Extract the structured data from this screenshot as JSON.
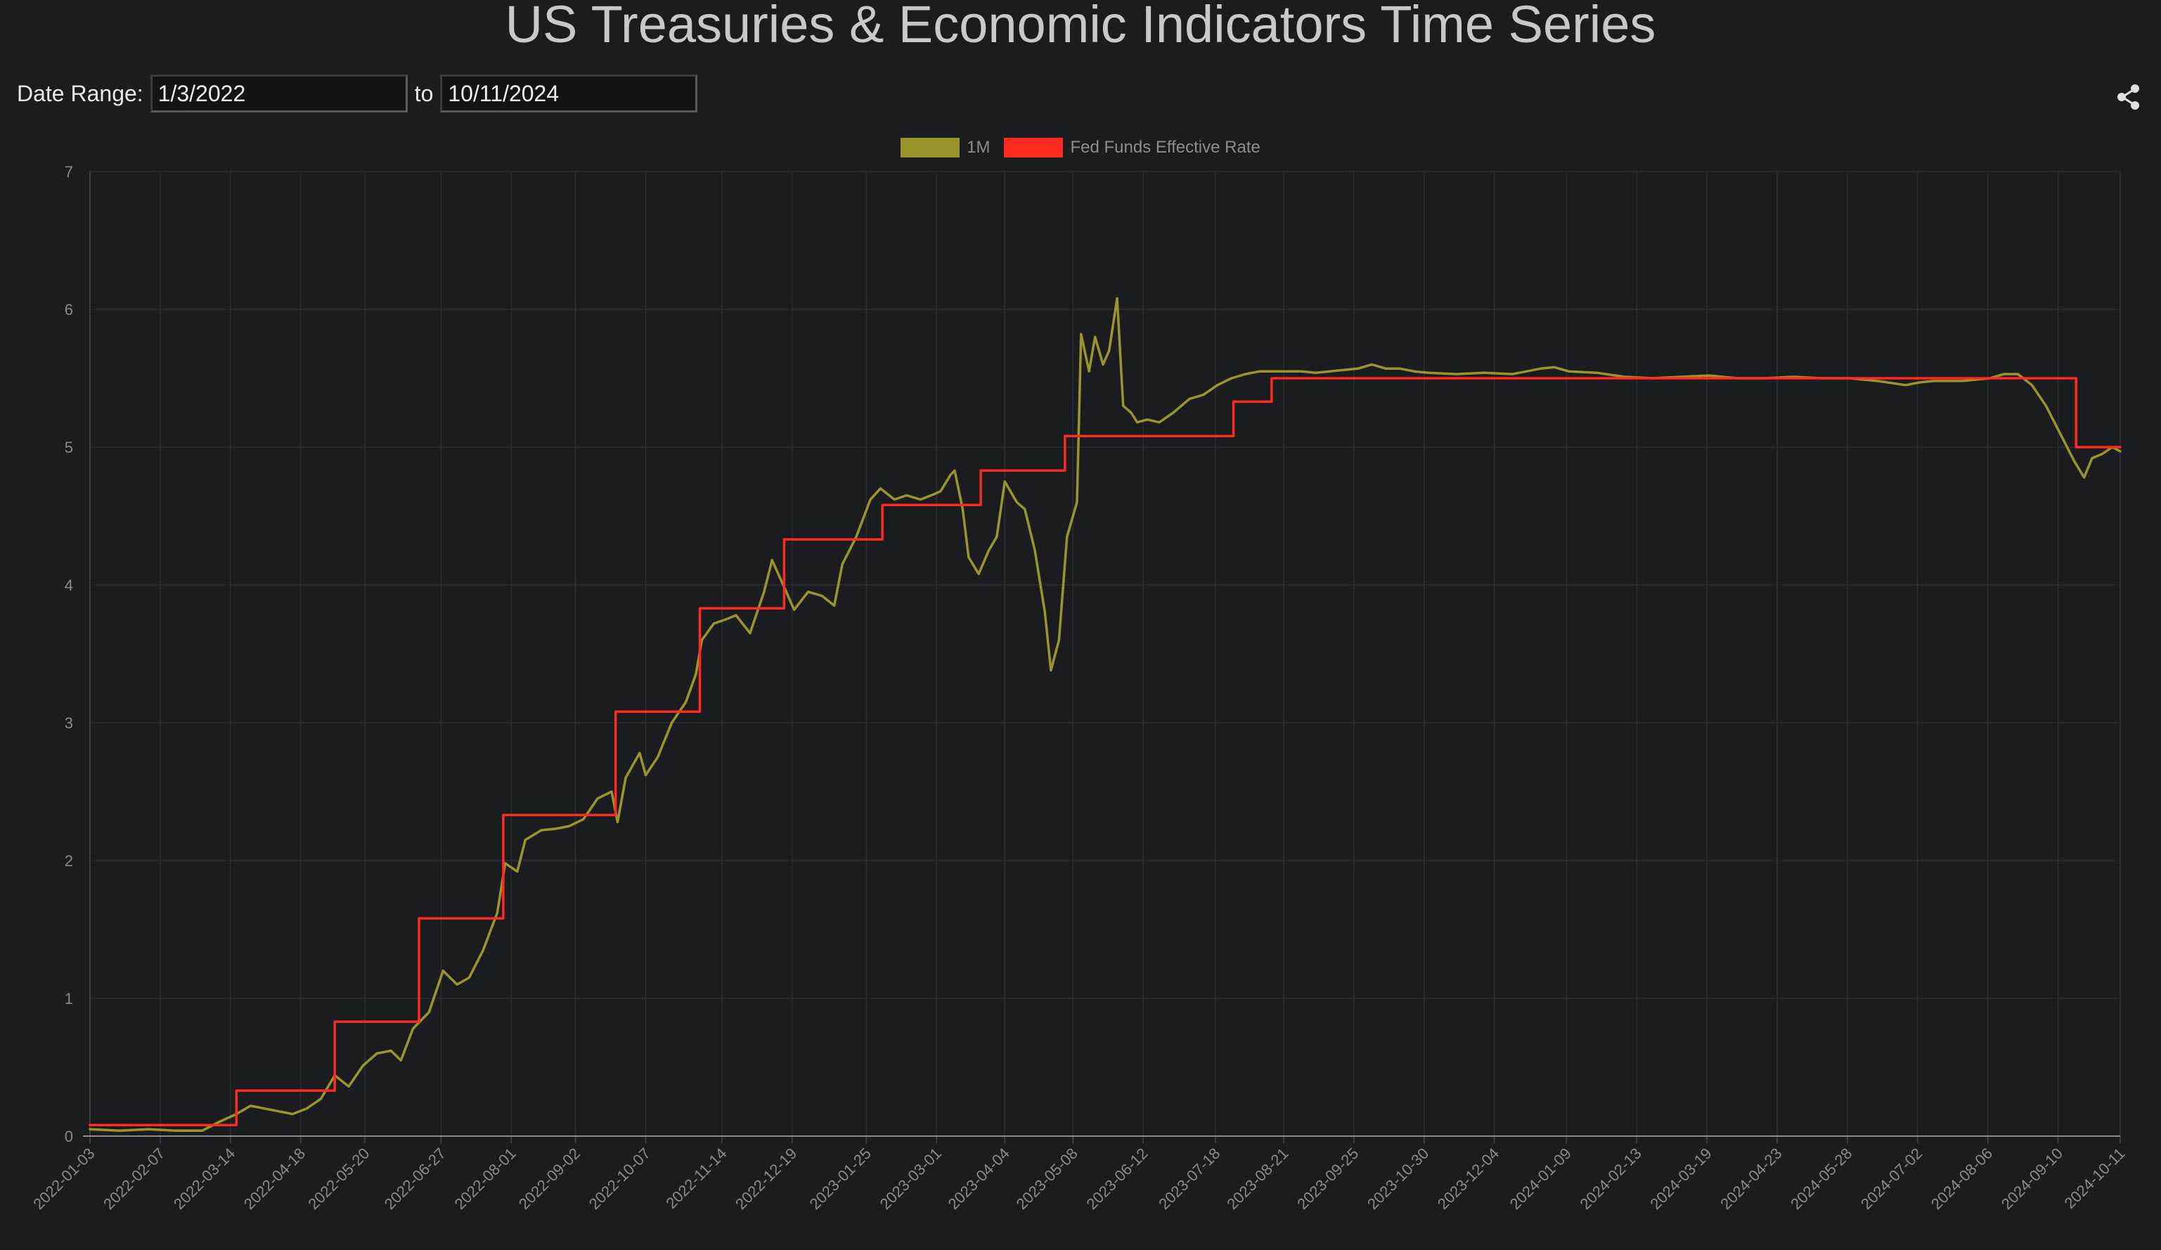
{
  "title": "US Treasuries & Economic Indicators Time Series",
  "controls": {
    "date_range_label": "Date Range:",
    "start_date": "1/3/2022",
    "to_label": "to",
    "end_date": "10/11/2024"
  },
  "share_icon": "share-icon",
  "chart_data": {
    "type": "line",
    "title": "US Treasuries & Economic Indicators Time Series",
    "xlabel": "",
    "ylabel": "",
    "ylim": [
      0,
      7
    ],
    "xlim": [
      "2022-01-03",
      "2024-10-11"
    ],
    "y_ticks": [
      0,
      1,
      2,
      3,
      4,
      5,
      6,
      7
    ],
    "x_tick_labels": [
      "2022-01-03",
      "2022-02-07",
      "2022-03-14",
      "2022-04-18",
      "2022-05-20",
      "2022-06-27",
      "2022-08-01",
      "2022-09-02",
      "2022-10-07",
      "2022-11-14",
      "2022-12-19",
      "2023-01-25",
      "2023-03-01",
      "2023-04-04",
      "2023-05-08",
      "2023-06-12",
      "2023-07-18",
      "2023-08-21",
      "2023-09-25",
      "2023-10-30",
      "2023-12-04",
      "2024-01-09",
      "2024-02-13",
      "2024-03-19",
      "2024-04-23",
      "2024-05-28",
      "2024-07-02",
      "2024-08-06",
      "2024-09-10",
      "2024-10-11"
    ],
    "grid": true,
    "legend_position": "top-center",
    "series": [
      {
        "name": "1M",
        "color": "#9a952a",
        "step": false,
        "points": [
          [
            "2022-01-03",
            0.05
          ],
          [
            "2022-01-18",
            0.04
          ],
          [
            "2022-02-01",
            0.05
          ],
          [
            "2022-02-15",
            0.04
          ],
          [
            "2022-02-28",
            0.04
          ],
          [
            "2022-03-08",
            0.1
          ],
          [
            "2022-03-17",
            0.16
          ],
          [
            "2022-03-24",
            0.22
          ],
          [
            "2022-03-31",
            0.2
          ],
          [
            "2022-04-07",
            0.18
          ],
          [
            "2022-04-14",
            0.16
          ],
          [
            "2022-04-21",
            0.2
          ],
          [
            "2022-04-28",
            0.27
          ],
          [
            "2022-05-05",
            0.44
          ],
          [
            "2022-05-12",
            0.36
          ],
          [
            "2022-05-19",
            0.51
          ],
          [
            "2022-05-26",
            0.6
          ],
          [
            "2022-06-02",
            0.62
          ],
          [
            "2022-06-07",
            0.55
          ],
          [
            "2022-06-13",
            0.78
          ],
          [
            "2022-06-21",
            0.9
          ],
          [
            "2022-06-28",
            1.2
          ],
          [
            "2022-07-05",
            1.1
          ],
          [
            "2022-07-11",
            1.15
          ],
          [
            "2022-07-18",
            1.35
          ],
          [
            "2022-07-25",
            1.62
          ],
          [
            "2022-07-29",
            1.98
          ],
          [
            "2022-08-04",
            1.92
          ],
          [
            "2022-08-08",
            2.15
          ],
          [
            "2022-08-16",
            2.22
          ],
          [
            "2022-08-23",
            2.23
          ],
          [
            "2022-08-30",
            2.25
          ],
          [
            "2022-09-06",
            2.3
          ],
          [
            "2022-09-13",
            2.45
          ],
          [
            "2022-09-20",
            2.5
          ],
          [
            "2022-09-23",
            2.28
          ],
          [
            "2022-09-27",
            2.6
          ],
          [
            "2022-10-04",
            2.78
          ],
          [
            "2022-10-07",
            2.62
          ],
          [
            "2022-10-13",
            2.75
          ],
          [
            "2022-10-20",
            3.0
          ],
          [
            "2022-10-27",
            3.15
          ],
          [
            "2022-11-01",
            3.35
          ],
          [
            "2022-11-04",
            3.6
          ],
          [
            "2022-11-10",
            3.72
          ],
          [
            "2022-11-16",
            3.75
          ],
          [
            "2022-11-21",
            3.78
          ],
          [
            "2022-11-28",
            3.65
          ],
          [
            "2022-12-05",
            3.95
          ],
          [
            "2022-12-09",
            4.18
          ],
          [
            "2022-12-13",
            4.05
          ],
          [
            "2022-12-20",
            3.82
          ],
          [
            "2022-12-27",
            3.95
          ],
          [
            "2023-01-03",
            3.92
          ],
          [
            "2023-01-09",
            3.85
          ],
          [
            "2023-01-13",
            4.15
          ],
          [
            "2023-01-20",
            4.35
          ],
          [
            "2023-01-27",
            4.62
          ],
          [
            "2023-02-01",
            4.7
          ],
          [
            "2023-02-08",
            4.62
          ],
          [
            "2023-02-14",
            4.65
          ],
          [
            "2023-02-21",
            4.62
          ],
          [
            "2023-02-28",
            4.66
          ],
          [
            "2023-03-03",
            4.68
          ],
          [
            "2023-03-08",
            4.8
          ],
          [
            "2023-03-10",
            4.83
          ],
          [
            "2023-03-14",
            4.55
          ],
          [
            "2023-03-17",
            4.2
          ],
          [
            "2023-03-22",
            4.08
          ],
          [
            "2023-03-27",
            4.25
          ],
          [
            "2023-03-31",
            4.35
          ],
          [
            "2023-04-04",
            4.75
          ],
          [
            "2023-04-10",
            4.6
          ],
          [
            "2023-04-14",
            4.55
          ],
          [
            "2023-04-19",
            4.25
          ],
          [
            "2023-04-24",
            3.8
          ],
          [
            "2023-04-27",
            3.38
          ],
          [
            "2023-05-01",
            3.6
          ],
          [
            "2023-05-05",
            4.35
          ],
          [
            "2023-05-10",
            4.6
          ],
          [
            "2023-05-12",
            5.82
          ],
          [
            "2023-05-16",
            5.55
          ],
          [
            "2023-05-19",
            5.8
          ],
          [
            "2023-05-23",
            5.6
          ],
          [
            "2023-05-26",
            5.7
          ],
          [
            "2023-05-30",
            6.08
          ],
          [
            "2023-06-02",
            5.3
          ],
          [
            "2023-06-06",
            5.25
          ],
          [
            "2023-06-09",
            5.18
          ],
          [
            "2023-06-14",
            5.2
          ],
          [
            "2023-06-20",
            5.18
          ],
          [
            "2023-06-27",
            5.25
          ],
          [
            "2023-07-05",
            5.35
          ],
          [
            "2023-07-12",
            5.38
          ],
          [
            "2023-07-19",
            5.45
          ],
          [
            "2023-07-26",
            5.5
          ],
          [
            "2023-08-02",
            5.53
          ],
          [
            "2023-08-09",
            5.55
          ],
          [
            "2023-08-16",
            5.55
          ],
          [
            "2023-08-23",
            5.55
          ],
          [
            "2023-08-30",
            5.55
          ],
          [
            "2023-09-06",
            5.54
          ],
          [
            "2023-09-13",
            5.55
          ],
          [
            "2023-09-20",
            5.56
          ],
          [
            "2023-09-27",
            5.57
          ],
          [
            "2023-10-04",
            5.6
          ],
          [
            "2023-10-11",
            5.57
          ],
          [
            "2023-10-18",
            5.57
          ],
          [
            "2023-10-25",
            5.55
          ],
          [
            "2023-11-01",
            5.54
          ],
          [
            "2023-11-15",
            5.53
          ],
          [
            "2023-11-29",
            5.54
          ],
          [
            "2023-12-13",
            5.53
          ],
          [
            "2023-12-27",
            5.57
          ],
          [
            "2024-01-03",
            5.58
          ],
          [
            "2024-01-10",
            5.55
          ],
          [
            "2024-01-24",
            5.54
          ],
          [
            "2024-02-07",
            5.51
          ],
          [
            "2024-02-21",
            5.5
          ],
          [
            "2024-03-06",
            5.51
          ],
          [
            "2024-03-20",
            5.52
          ],
          [
            "2024-04-03",
            5.5
          ],
          [
            "2024-04-17",
            5.5
          ],
          [
            "2024-05-01",
            5.51
          ],
          [
            "2024-05-15",
            5.5
          ],
          [
            "2024-05-29",
            5.5
          ],
          [
            "2024-06-12",
            5.48
          ],
          [
            "2024-06-26",
            5.45
          ],
          [
            "2024-07-03",
            5.47
          ],
          [
            "2024-07-10",
            5.48
          ],
          [
            "2024-07-24",
            5.48
          ],
          [
            "2024-08-07",
            5.5
          ],
          [
            "2024-08-14",
            5.53
          ],
          [
            "2024-08-21",
            5.53
          ],
          [
            "2024-08-28",
            5.45
          ],
          [
            "2024-09-04",
            5.3
          ],
          [
            "2024-09-11",
            5.1
          ],
          [
            "2024-09-18",
            4.9
          ],
          [
            "2024-09-23",
            4.78
          ],
          [
            "2024-09-27",
            4.92
          ],
          [
            "2024-10-02",
            4.95
          ],
          [
            "2024-10-07",
            5.0
          ],
          [
            "2024-10-11",
            4.97
          ]
        ]
      },
      {
        "name": "Fed Funds Effective Rate",
        "color": "#ff2a1f",
        "step": true,
        "points": [
          [
            "2022-01-03",
            0.08
          ],
          [
            "2022-03-17",
            0.33
          ],
          [
            "2022-05-05",
            0.83
          ],
          [
            "2022-06-16",
            1.58
          ],
          [
            "2022-07-28",
            2.33
          ],
          [
            "2022-09-22",
            3.08
          ],
          [
            "2022-11-03",
            3.83
          ],
          [
            "2022-12-15",
            4.33
          ],
          [
            "2023-02-02",
            4.58
          ],
          [
            "2023-03-23",
            4.83
          ],
          [
            "2023-05-04",
            5.08
          ],
          [
            "2023-07-27",
            5.33
          ],
          [
            "2023-08-15",
            5.5
          ],
          [
            "2024-09-19",
            5.0
          ],
          [
            "2024-10-11",
            5.0
          ]
        ]
      }
    ]
  }
}
